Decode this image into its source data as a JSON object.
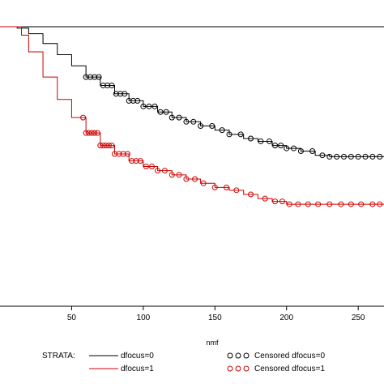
{
  "chart_data": {
    "type": "line",
    "title": "",
    "xlabel": "nmf",
    "ylabel": "",
    "xlim": [
      0,
      268
    ],
    "ylim": [
      0,
      1
    ],
    "x_ticks": [
      50,
      100,
      150,
      200,
      250
    ],
    "grid": false,
    "legend": {
      "title": "STRATA:",
      "placement": "bottom",
      "line_entries": [
        "dfocus=0",
        "dfocus=1"
      ],
      "censored_entries": [
        "Censored dfocus=0",
        "Censored dfocus=1"
      ]
    },
    "series": [
      {
        "name": "dfocus=0",
        "color": "#000000",
        "x": [
          0,
          8,
          12,
          20,
          30,
          40,
          50,
          60,
          70,
          80,
          90,
          100,
          110,
          120,
          130,
          140,
          150,
          160,
          170,
          180,
          190,
          200,
          210,
          220,
          230,
          240,
          250,
          268
        ],
        "y": [
          1.0,
          1.0,
          0.995,
          0.975,
          0.94,
          0.9,
          0.86,
          0.82,
          0.79,
          0.76,
          0.735,
          0.715,
          0.695,
          0.675,
          0.66,
          0.645,
          0.63,
          0.615,
          0.6,
          0.59,
          0.575,
          0.565,
          0.555,
          0.54,
          0.535,
          0.535,
          0.535,
          0.535
        ]
      },
      {
        "name": "dfocus=1",
        "color": "#cc0000",
        "x": [
          0,
          10,
          15,
          20,
          30,
          40,
          50,
          60,
          70,
          80,
          90,
          100,
          110,
          120,
          130,
          140,
          150,
          160,
          170,
          180,
          190,
          200,
          210,
          220,
          230,
          240,
          250,
          268
        ],
        "y": [
          1.0,
          1.0,
          0.97,
          0.91,
          0.82,
          0.74,
          0.675,
          0.62,
          0.575,
          0.545,
          0.52,
          0.5,
          0.485,
          0.47,
          0.455,
          0.44,
          0.425,
          0.415,
          0.4,
          0.385,
          0.375,
          0.365,
          0.365,
          0.365,
          0.365,
          0.365,
          0.365,
          0.365
        ]
      }
    ],
    "censored": [
      {
        "name": "Censored dfocus=0",
        "color": "#000000",
        "x": [
          60,
          63,
          66,
          69,
          72,
          75,
          78,
          81,
          84,
          87,
          90,
          93,
          96,
          100,
          104,
          108,
          112,
          116,
          120,
          125,
          130,
          135,
          140,
          148,
          155,
          160,
          168,
          175,
          182,
          188,
          192,
          196,
          200,
          205,
          210,
          218,
          225,
          230,
          235,
          240,
          245,
          250,
          255,
          260,
          265
        ]
      },
      {
        "name": "Censored dfocus=1",
        "color": "#cc0000",
        "x": [
          58,
          60,
          62,
          64,
          66,
          68,
          70,
          72,
          74,
          76,
          78,
          80,
          83,
          86,
          89,
          92,
          95,
          98,
          102,
          106,
          110,
          115,
          120,
          125,
          130,
          136,
          142,
          150,
          158,
          165,
          175,
          185,
          192,
          197,
          202,
          208,
          215,
          222,
          230,
          238,
          245,
          252,
          260,
          265
        ]
      }
    ]
  }
}
